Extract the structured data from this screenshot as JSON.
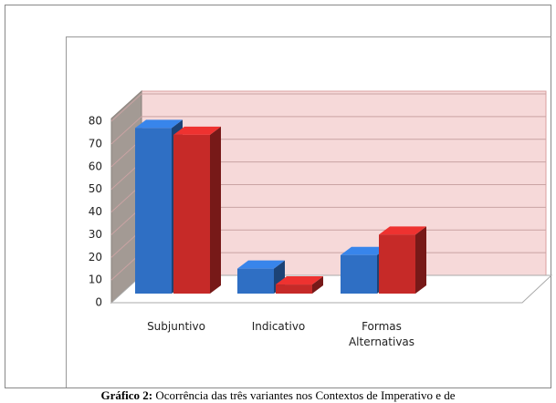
{
  "chart_data": {
    "type": "bar3d",
    "categories": [
      "Subjuntivo",
      "Indicativo",
      "Formas Alternativas"
    ],
    "series": [
      {
        "color": "#2f6fc4",
        "values": [
          73,
          11,
          17
        ]
      },
      {
        "color": "#c62a28",
        "values": [
          70,
          4,
          26
        ]
      }
    ],
    "ylim": [
      0,
      80
    ],
    "yticks": [
      0,
      10,
      20,
      30,
      40,
      50,
      60,
      70,
      80
    ],
    "grid": true,
    "caption_label": "Gráfico 2:",
    "caption_text": "Ocorrência das três variantes nos Contextos de Imperativo e de"
  }
}
